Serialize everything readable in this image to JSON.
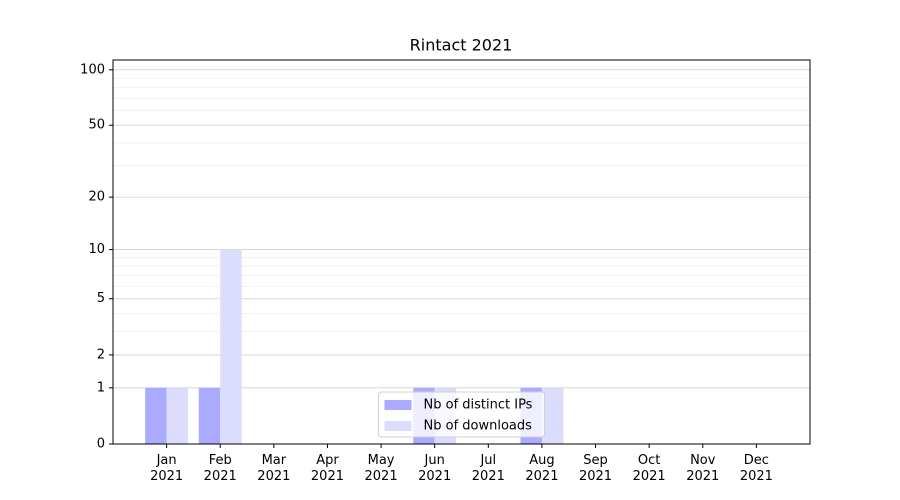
{
  "chart_data": {
    "type": "bar",
    "title": "Rintact 2021",
    "categories": [
      "Jan\n2021",
      "Feb\n2021",
      "Mar\n2021",
      "Apr\n2021",
      "May\n2021",
      "Jun\n2021",
      "Jul\n2021",
      "Aug\n2021",
      "Sep\n2021",
      "Oct\n2021",
      "Nov\n2021",
      "Dec\n2021"
    ],
    "series": [
      {
        "name": "Nb of distinct IPs",
        "color": "#aaaaff",
        "values": [
          1,
          1,
          0,
          0,
          0,
          1,
          0,
          1,
          0,
          0,
          0,
          0
        ]
      },
      {
        "name": "Nb of downloads",
        "color": "#dcdcfc",
        "values": [
          1,
          10,
          0,
          0,
          0,
          1,
          0,
          1,
          0,
          0,
          0,
          0
        ]
      }
    ],
    "yscale": "log1p",
    "ylim": [
      0,
      113
    ],
    "yticks": [
      0,
      1,
      2,
      5,
      10,
      20,
      50,
      100
    ],
    "minor_grid": [
      3,
      4,
      6,
      7,
      8,
      9,
      30,
      40,
      60,
      70,
      80,
      90
    ],
    "grid": true,
    "legend": "lower center"
  }
}
